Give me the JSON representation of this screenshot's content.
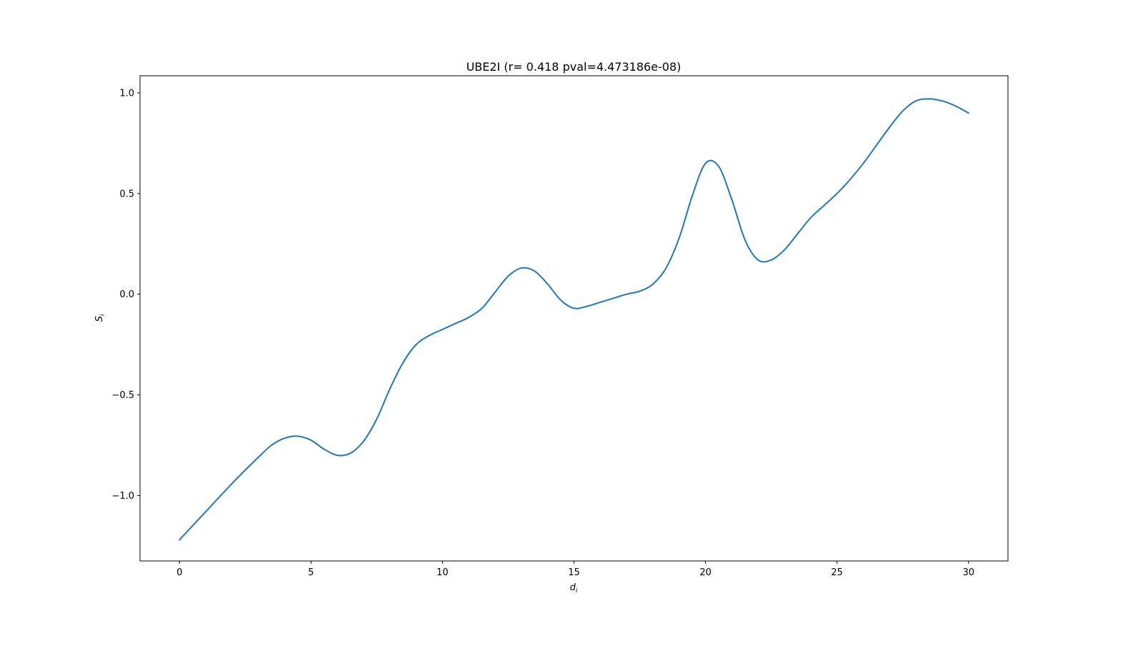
{
  "chart_data": {
    "type": "line",
    "title": "UBE2I (r= 0.418 pval=4.473186e-08)",
    "xlabel": "d",
    "xlabel_sub": "i",
    "ylabel": "S",
    "ylabel_sub": "i",
    "xlim": [
      -1.5,
      31.5
    ],
    "ylim": [
      -1.325,
      1.085
    ],
    "xticks": [
      0,
      5,
      10,
      15,
      20,
      25,
      30
    ],
    "xtick_labels": [
      "0",
      "5",
      "10",
      "15",
      "20",
      "25",
      "30"
    ],
    "yticks": [
      -1.0,
      -0.5,
      0.0,
      0.5,
      1.0
    ],
    "ytick_labels": [
      "−1.0",
      "−0.5",
      "0.0",
      "0.5",
      "1.0"
    ],
    "grid": false,
    "line_color": "#1f77b4",
    "series": [
      {
        "x": [
          0,
          1,
          2,
          3,
          3.5,
          4,
          4.5,
          5,
          5.5,
          6,
          6.5,
          7,
          7.5,
          8,
          8.5,
          9,
          9.5,
          10,
          10.5,
          11,
          11.5,
          12,
          12.5,
          13,
          13.5,
          14,
          14.5,
          15,
          15.5,
          16,
          16.5,
          17,
          17.5,
          18,
          18.5,
          19,
          19.5,
          20,
          20.5,
          21,
          21.5,
          22,
          22.5,
          23,
          23.5,
          24,
          24.5,
          25,
          25.5,
          26,
          26.5,
          27,
          27.5,
          28,
          28.5,
          29,
          29.5,
          30
        ],
        "y": [
          -1.22,
          -1.08,
          -0.94,
          -0.81,
          -0.75,
          -0.715,
          -0.705,
          -0.725,
          -0.77,
          -0.8,
          -0.79,
          -0.73,
          -0.62,
          -0.47,
          -0.34,
          -0.25,
          -0.205,
          -0.175,
          -0.145,
          -0.115,
          -0.07,
          0.01,
          0.09,
          0.13,
          0.115,
          0.05,
          -0.03,
          -0.07,
          -0.06,
          -0.04,
          -0.02,
          0.0,
          0.015,
          0.05,
          0.13,
          0.28,
          0.49,
          0.65,
          0.635,
          0.47,
          0.27,
          0.17,
          0.17,
          0.22,
          0.3,
          0.38,
          0.44,
          0.5,
          0.57,
          0.65,
          0.74,
          0.83,
          0.91,
          0.96,
          0.97,
          0.96,
          0.935,
          0.9
        ]
      }
    ]
  }
}
